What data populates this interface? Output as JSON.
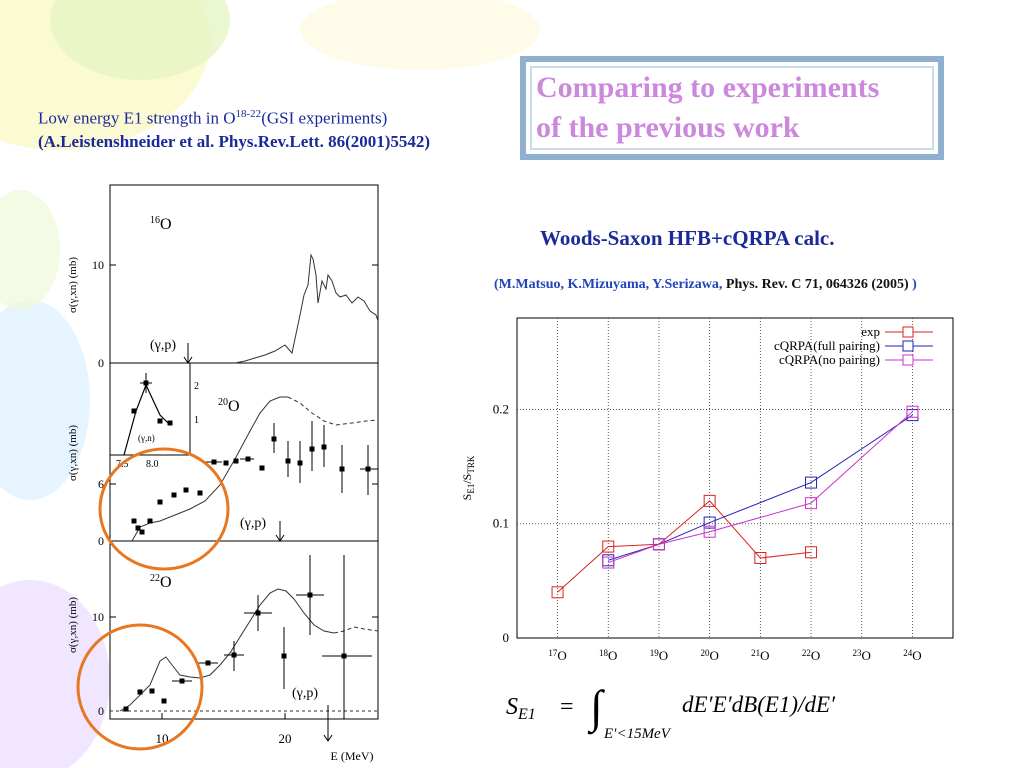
{
  "slide": {
    "title": "Comparing to experiments\nof the previous work",
    "left_caption_line1_prefix": "Low energy E1 strength in O",
    "left_caption_line1_sup": "18-22",
    "left_caption_line1_suffix": "(GSI experiments)",
    "left_caption_line2": "(A.Leistenshneider et al. Phys.Rev.Lett. 86(2001)5542)",
    "calc_title": "Woods-Saxon HFB+cQRPA calc.",
    "ref_open": "(",
    "ref_authors": "M.Matsuo, K.Mizuyama, Y.Serizawa, ",
    "ref_journal": "Phys. Rev. C 71, 064326 (2005)",
    "ref_close": " )",
    "formula": {
      "lhs": "S",
      "lhs_sub": "E1",
      "eq": "=",
      "integrand": "dE′E′dB(E1)/dE′",
      "limit": "E′<15MeV"
    },
    "colors": {
      "title": "#cc88dd",
      "caption": "#1a2a99",
      "highlight_circle": "#e87722"
    }
  },
  "chart_data": [
    {
      "type": "line",
      "title": "",
      "xlabel": "",
      "ylabel": "S_E1/S_TRK",
      "xlim": [
        17,
        24
      ],
      "ylim": [
        0,
        0.28
      ],
      "grid": true,
      "legend_position": "top-right",
      "categories": [
        "17O",
        "18O",
        "19O",
        "20O",
        "21O",
        "22O",
        "23O",
        "24O"
      ],
      "x": [
        17,
        18,
        19,
        20,
        21,
        22,
        23,
        24
      ],
      "y_ticks": [
        0,
        0.1,
        0.2
      ],
      "series": [
        {
          "name": "exp",
          "color": "#dd2222",
          "x": [
            17,
            18,
            19,
            20,
            21,
            22
          ],
          "values": [
            0.04,
            0.08,
            0.082,
            0.12,
            0.07,
            0.075
          ]
        },
        {
          "name": "cQRPA(full pairing)",
          "color": "#2222bb",
          "x": [
            18,
            19,
            20,
            22,
            24
          ],
          "values": [
            0.068,
            0.082,
            0.101,
            0.136,
            0.195
          ]
        },
        {
          "name": "cQRPA(no pairing)",
          "color": "#cc33cc",
          "x": [
            18,
            19,
            20,
            22,
            24
          ],
          "values": [
            0.066,
            0.082,
            0.093,
            0.118,
            0.198
          ]
        }
      ]
    },
    {
      "type": "scatter",
      "panels": [
        {
          "label": "16O",
          "label_mass": "16",
          "label_element": "O",
          "ylabel": "σ(γ,xn) (mb)",
          "y_ticks": [
            "10",
            "0"
          ],
          "annotation": "(γ,p)"
        },
        {
          "label": "20O",
          "label_mass": "20",
          "label_element": "O",
          "ylabel": "σ(γ,xn) (mb)",
          "y_ticks": [
            "6",
            "0"
          ],
          "annotation": "(γ,p)",
          "inset": {
            "label": "(γ,n)",
            "x_ticks": [
              "7.5",
              "8.0"
            ],
            "y_ticks": [
              "2",
              "1"
            ]
          }
        },
        {
          "label": "22O",
          "label_mass": "22",
          "label_element": "O",
          "ylabel": "σ(γ,xn) (mb)",
          "y_ticks": [
            "10",
            "0"
          ],
          "annotation": "(γ,p)"
        }
      ],
      "xlabel": "E (MeV)",
      "x_ticks": [
        "10",
        "20"
      ]
    }
  ]
}
